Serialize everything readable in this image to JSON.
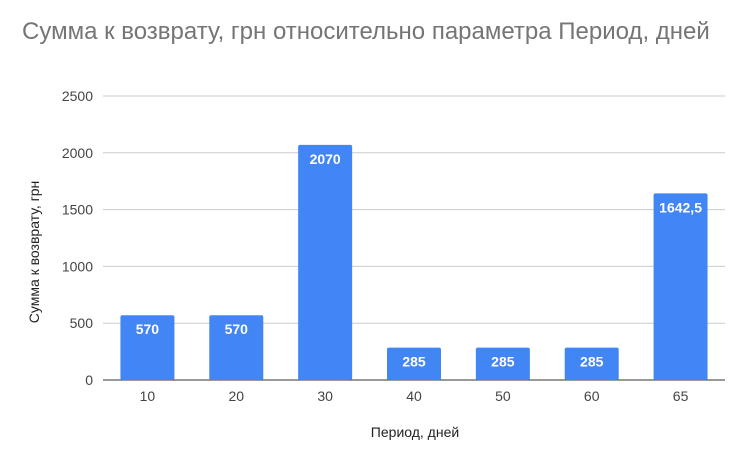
{
  "chart_data": {
    "type": "bar",
    "title": "Сумма к возврату, грн относительно параметра Период, дней",
    "xlabel": "Период, дней",
    "ylabel": "Сумма к возврату, грн",
    "categories": [
      "10",
      "20",
      "30",
      "40",
      "50",
      "60",
      "65"
    ],
    "values": [
      570,
      570,
      2070,
      285,
      285,
      285,
      1642.5
    ],
    "data_labels": [
      "570",
      "570",
      "2070",
      "285",
      "285",
      "285",
      "1642,5"
    ],
    "y_ticks": [
      "0",
      "500",
      "1000",
      "1500",
      "2000",
      "2500"
    ],
    "ylim": [
      0,
      2500
    ],
    "grid": true,
    "bar_color": "#4285f4"
  }
}
